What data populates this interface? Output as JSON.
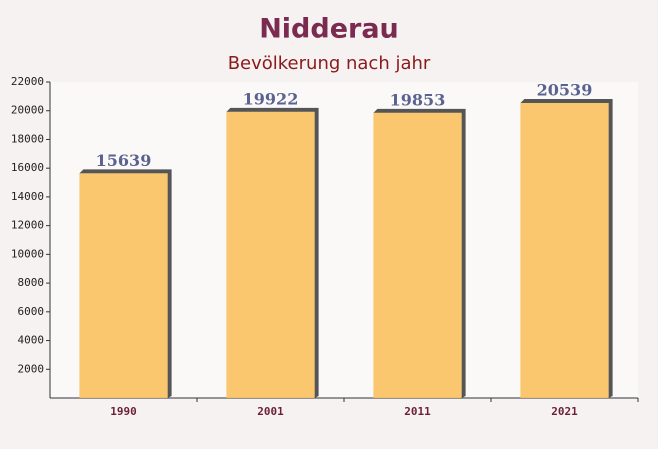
{
  "chart_data": {
    "type": "bar",
    "title": "Nidderau",
    "subtitle": "Bevölkerung nach jahr",
    "categories": [
      "1990",
      "2001",
      "2011",
      "2021"
    ],
    "values": [
      15639,
      19922,
      19853,
      20539
    ],
    "color": "#fbc15e",
    "ylim": [
      0,
      22000
    ],
    "yticks": [
      2000,
      4000,
      6000,
      8000,
      10000,
      12000,
      14000,
      16000,
      18000,
      20000,
      22000
    ]
  }
}
